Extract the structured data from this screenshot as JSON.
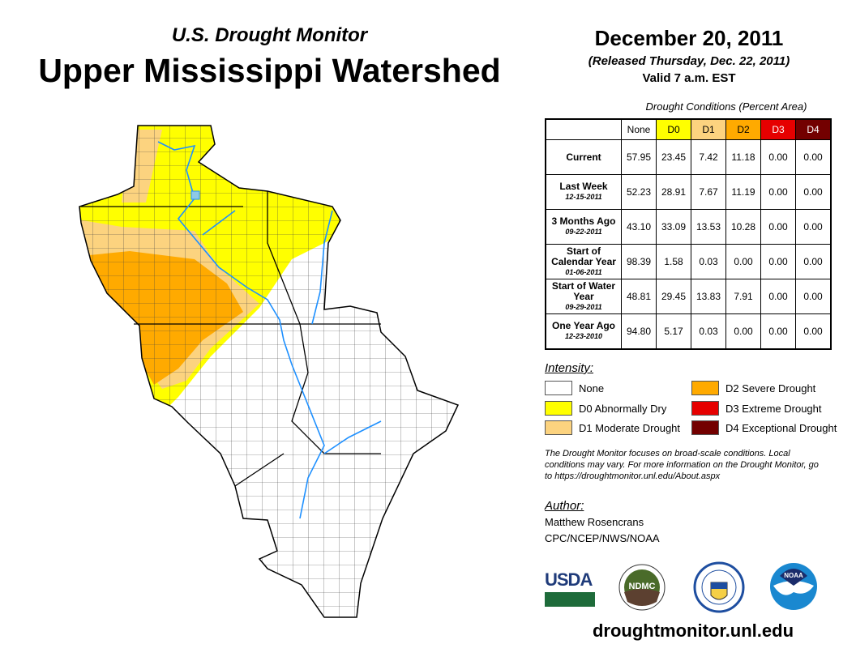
{
  "header": {
    "subtitle": "U.S. Drought Monitor",
    "title": "Upper Mississippi Watershed",
    "date": "December 20, 2011",
    "released": "(Released Thursday, Dec. 22, 2011)",
    "valid": "Valid 7 a.m. EST"
  },
  "table": {
    "caption": "Drought Conditions (Percent Area)",
    "columns": [
      "None",
      "D0",
      "D1",
      "D2",
      "D3",
      "D4"
    ],
    "column_colors": [
      "#ffffff",
      "#ffff00",
      "#fcd37f",
      "#ffaa00",
      "#e60000",
      "#730000"
    ],
    "rows": [
      {
        "label": "Current",
        "date": "",
        "values": [
          "57.95",
          "23.45",
          "7.42",
          "11.18",
          "0.00",
          "0.00"
        ]
      },
      {
        "label": "Last Week",
        "date": "12-15-2011",
        "values": [
          "52.23",
          "28.91",
          "7.67",
          "11.19",
          "0.00",
          "0.00"
        ]
      },
      {
        "label": "3 Months Ago",
        "date": "09-22-2011",
        "values": [
          "43.10",
          "33.09",
          "13.53",
          "10.28",
          "0.00",
          "0.00"
        ]
      },
      {
        "label": "Start of Calendar Year",
        "date": "01-06-2011",
        "values": [
          "98.39",
          "1.58",
          "0.03",
          "0.00",
          "0.00",
          "0.00"
        ]
      },
      {
        "label": "Start of Water Year",
        "date": "09-29-2011",
        "values": [
          "48.81",
          "29.45",
          "13.83",
          "7.91",
          "0.00",
          "0.00"
        ]
      },
      {
        "label": "One Year Ago",
        "date": "12-23-2010",
        "values": [
          "94.80",
          "5.17",
          "0.03",
          "0.00",
          "0.00",
          "0.00"
        ]
      }
    ]
  },
  "legend": {
    "title": "Intensity:",
    "items": [
      {
        "label": "None",
        "color": "#ffffff"
      },
      {
        "label": "D0 Abnormally Dry",
        "color": "#ffff00"
      },
      {
        "label": "D1 Moderate Drought",
        "color": "#fcd37f"
      },
      {
        "label": "D2 Severe Drought",
        "color": "#ffaa00"
      },
      {
        "label": "D3 Extreme Drought",
        "color": "#e60000"
      },
      {
        "label": "D4 Exceptional Drought",
        "color": "#730000"
      }
    ]
  },
  "note": "The Drought Monitor focuses on broad-scale conditions. Local conditions may vary. For more information on the Drought Monitor, go to https://droughtmonitor.unl.edu/About.aspx",
  "author": {
    "title": "Author:",
    "name": "Matthew Rosencrans",
    "org": "CPC/NCEP/NWS/NOAA"
  },
  "logos": {
    "usda": "USDA",
    "ndmc": "NDMC",
    "doc": "Department of Commerce",
    "noaa": "NOAA"
  },
  "url": "droughtmonitor.unl.edu"
}
